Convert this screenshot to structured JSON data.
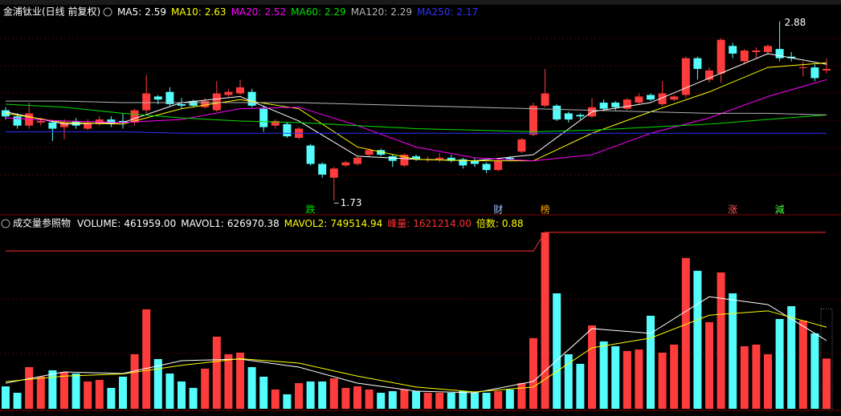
{
  "chart_data": [
    {
      "type": "candlestick",
      "title": "金浦钛业(日线 前复权)",
      "open": [
        2.32,
        2.28,
        2.22,
        2.24,
        2.24,
        2.21,
        2.25,
        2.2,
        2.23,
        2.26,
        2.25,
        2.24,
        2.32,
        2.41,
        2.44,
        2.36,
        2.38,
        2.34,
        2.32,
        2.42,
        2.43,
        2.44,
        2.33,
        2.22,
        2.23,
        2.14,
        2.09,
        1.97,
        1.88,
        1.96,
        1.97,
        2.03,
        2.06,
        2.02,
        1.96,
        2.02,
        2.0,
        2.0,
        2.01,
        2.0,
        1.99,
        1.97,
        1.93,
        2.01,
        2.05,
        2.16,
        2.35,
        2.35,
        2.3,
        2.29,
        2.28,
        2.37,
        2.37,
        2.33,
        2.37,
        2.42,
        2.36,
        2.39,
        2.42,
        2.66,
        2.52,
        2.56,
        2.74,
        2.64,
        2.7,
        2.7,
        2.72,
        2.67,
        2.6,
        2.6,
        2.58
      ],
      "high": [
        2.34,
        2.3,
        2.37,
        2.27,
        2.25,
        2.26,
        2.27,
        2.26,
        2.28,
        2.28,
        2.3,
        2.33,
        2.55,
        2.42,
        2.47,
        2.4,
        2.39,
        2.4,
        2.51,
        2.46,
        2.52,
        2.46,
        2.35,
        2.26,
        2.24,
        2.21,
        2.1,
        1.98,
        1.95,
        1.99,
        2.02,
        2.07,
        2.07,
        2.03,
        2.04,
        2.03,
        2.02,
        2.04,
        2.03,
        2.01,
        2.01,
        1.98,
        2.0,
        2.02,
        2.14,
        2.37,
        2.59,
        2.36,
        2.31,
        2.3,
        2.4,
        2.39,
        2.38,
        2.4,
        2.43,
        2.43,
        2.51,
        2.42,
        2.67,
        2.67,
        2.6,
        2.79,
        2.76,
        2.72,
        2.73,
        2.75,
        2.88,
        2.7,
        2.64,
        2.62,
        2.66
      ],
      "low": [
        2.26,
        2.2,
        2.2,
        2.22,
        2.12,
        2.13,
        2.2,
        2.19,
        2.22,
        2.21,
        2.2,
        2.22,
        2.3,
        2.36,
        2.35,
        2.33,
        2.34,
        2.33,
        2.31,
        2.4,
        2.42,
        2.34,
        2.18,
        2.2,
        2.14,
        2.13,
        1.96,
        1.88,
        1.73,
        1.95,
        1.96,
        2.02,
        2.02,
        1.95,
        1.95,
        1.99,
        1.98,
        1.98,
        1.98,
        1.94,
        1.95,
        1.91,
        1.92,
        1.99,
        2.04,
        2.15,
        2.34,
        2.25,
        2.24,
        2.26,
        2.27,
        2.32,
        2.32,
        2.32,
        2.36,
        2.38,
        2.35,
        2.38,
        2.4,
        2.52,
        2.5,
        2.5,
        2.66,
        2.62,
        2.66,
        2.68,
        2.64,
        2.64,
        2.54,
        2.51,
        2.56
      ],
      "close": [
        2.28,
        2.22,
        2.3,
        2.25,
        2.2,
        2.24,
        2.22,
        2.24,
        2.26,
        2.23,
        2.24,
        2.32,
        2.43,
        2.39,
        2.36,
        2.35,
        2.35,
        2.38,
        2.43,
        2.44,
        2.47,
        2.35,
        2.21,
        2.25,
        2.15,
        2.2,
        1.97,
        1.9,
        1.94,
        1.98,
        2.01,
        2.06,
        2.03,
        1.99,
        2.03,
        2.0,
        2.0,
        2.01,
        1.99,
        1.96,
        1.97,
        1.93,
        1.99,
        2.0,
        2.13,
        2.35,
        2.43,
        2.26,
        2.26,
        2.28,
        2.34,
        2.33,
        2.34,
        2.39,
        2.41,
        2.39,
        2.43,
        2.41,
        2.66,
        2.59,
        2.58,
        2.78,
        2.69,
        2.71,
        2.71,
        2.74,
        2.66,
        2.66,
        2.6,
        2.53,
        2.59
      ],
      "ylim": [
        1.69,
        2.93
      ],
      "up_color": "#ff3c3c",
      "down_color": "#54fcfc",
      "ma_x": [
        0,
        5,
        10,
        15,
        20,
        25,
        30,
        35,
        40,
        45,
        50,
        55,
        60,
        65,
        70
      ],
      "ma": [
        {
          "name": "MA5:",
          "value": 2.59,
          "color": "#ffffff",
          "values": [
            2.31,
            2.23,
            2.24,
            2.37,
            2.41,
            2.25,
            2.02,
            2.0,
            1.99,
            2.03,
            2.31,
            2.37,
            2.53,
            2.69,
            2.62
          ]
        },
        {
          "name": "MA10:",
          "value": 2.63,
          "color": "#ffff00",
          "values": [
            2.3,
            2.24,
            2.23,
            2.33,
            2.39,
            2.33,
            2.08,
            2.0,
            1.99,
            1.99,
            2.17,
            2.31,
            2.44,
            2.6,
            2.63
          ]
        },
        {
          "name": "MA20:",
          "value": 2.52,
          "color": "#ff00ff",
          "values": [
            2.27,
            2.25,
            2.24,
            2.26,
            2.33,
            2.34,
            2.22,
            2.08,
            2.01,
            1.99,
            2.03,
            2.17,
            2.27,
            2.41,
            2.52
          ]
        },
        {
          "name": "MA60:",
          "value": 2.29,
          "color": "#00e000",
          "values": [
            2.36,
            2.34,
            2.3,
            2.27,
            2.25,
            2.24,
            2.22,
            2.2,
            2.19,
            2.18,
            2.19,
            2.21,
            2.23,
            2.26,
            2.29
          ]
        },
        {
          "name": "MA120:",
          "value": 2.29,
          "color": "#b4b4b4",
          "values": [
            2.38,
            2.38,
            2.37,
            2.37,
            2.37,
            2.37,
            2.36,
            2.35,
            2.34,
            2.33,
            2.32,
            2.31,
            2.3,
            2.3,
            2.29
          ]
        },
        {
          "name": "MA250:",
          "value": 2.17,
          "color": "#3030ff",
          "values": [
            2.18,
            2.18,
            2.18,
            2.17,
            2.17,
            2.17,
            2.17,
            2.17,
            2.17,
            2.17,
            2.17,
            2.17,
            2.17,
            2.17,
            2.17
          ]
        }
      ],
      "annotations": [
        {
          "text": "跌",
          "index": 26,
          "color": "#00e000"
        },
        {
          "text": "财",
          "index": 42,
          "color": "#a0c8ff"
        },
        {
          "text": "榜",
          "index": 46,
          "color": "#ffa500"
        },
        {
          "text": "涨",
          "index": 62,
          "color": "#ff5050"
        },
        {
          "text": "減",
          "index": 66,
          "color": "#40ff40"
        }
      ],
      "high_label": {
        "value": 2.88,
        "index": 66
      },
      "low_label": {
        "value": 1.73,
        "index": 28
      }
    },
    {
      "type": "volume-bar",
      "title": "成交量参照物",
      "values": [
        206000,
        147000,
        383000,
        295000,
        354000,
        339000,
        324000,
        251000,
        265000,
        192000,
        295000,
        501000,
        914000,
        457000,
        324000,
        251000,
        192000,
        369000,
        663000,
        501000,
        516000,
        383000,
        295000,
        177000,
        133000,
        236000,
        251000,
        251000,
        280000,
        192000,
        206000,
        177000,
        147000,
        162000,
        177000,
        162000,
        147000,
        147000,
        147000,
        162000,
        147000,
        147000,
        162000,
        177000,
        236000,
        649000,
        1621214,
        1061000,
        501000,
        413000,
        766000,
        619000,
        575000,
        531000,
        545000,
        855000,
        516000,
        590000,
        1386000,
        1268000,
        796000,
        1253000,
        1061000,
        575000,
        590000,
        501000,
        825000,
        943000,
        811000,
        693000,
        461959
      ],
      "ylim": [
        0,
        1650000
      ],
      "ma_x": [
        0,
        5,
        10,
        15,
        20,
        25,
        30,
        35,
        40,
        45,
        50,
        55,
        60,
        65,
        70
      ],
      "indicators": [
        {
          "name": "VOLUME:",
          "value": 461959,
          "value_label": "461959.00",
          "color": "#ffffff"
        },
        {
          "name": "MAVOL1:",
          "value": 626970.38,
          "value_label": "626970.38",
          "color": "#ffffff",
          "values": [
            236000,
            339000,
            324000,
            442000,
            457000,
            383000,
            236000,
            162000,
            147000,
            251000,
            737000,
            693000,
            1030000,
            958000,
            626970.38
          ]
        },
        {
          "name": "MAVOL2:",
          "value": 749514.94,
          "value_label": "749514.94",
          "color": "#ffff00",
          "values": [
            250000,
            300000,
            320000,
            400000,
            460000,
            420000,
            300000,
            200000,
            155000,
            200000,
            560000,
            650000,
            860000,
            900000,
            749514.94
          ]
        },
        {
          "name": "峰量:",
          "value": 1621214,
          "value_label": "1621214.00",
          "color": "#ff3030",
          "x": [
            0,
            45,
            46,
            70
          ],
          "values": [
            1450000,
            1450000,
            1621214,
            1621214
          ]
        },
        {
          "name": "倍数:",
          "value": 0.88,
          "color": "#ffff00"
        }
      ]
    }
  ]
}
